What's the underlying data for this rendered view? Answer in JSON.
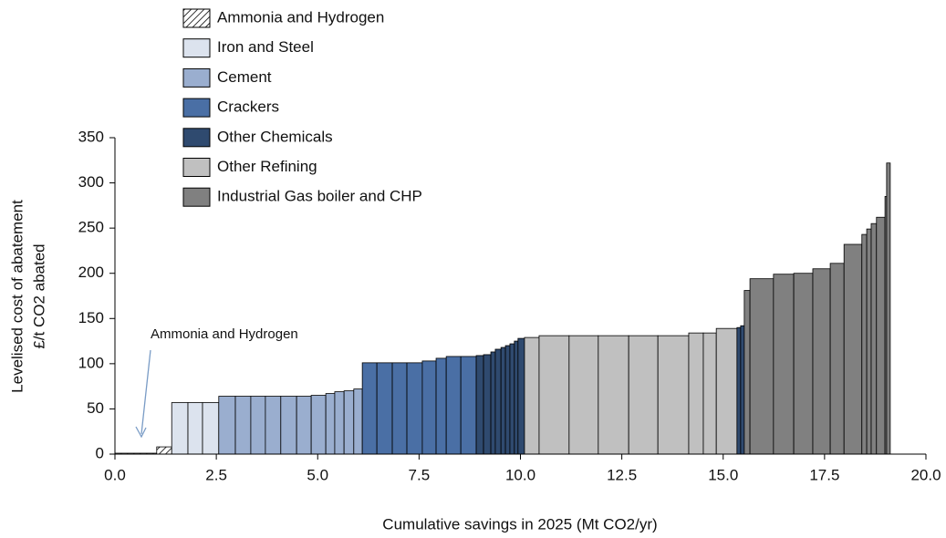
{
  "chart_data": {
    "type": "macc",
    "y_label": [
      "Levelised cost of abatement",
      "£/t CO2 abated"
    ],
    "x_label": "Cumulative savings in 2025 (Mt CO2/yr)",
    "annotation": "Ammonia and Hydrogen",
    "xlim": [
      0,
      20
    ],
    "xticks": [
      {
        "value": 0,
        "label": "0.0"
      },
      2.5,
      {
        "value": 5,
        "label": "5.0"
      },
      7.5,
      {
        "value": 10,
        "label": "10.0"
      },
      12.5,
      {
        "value": 15,
        "label": "15.0"
      },
      17.5,
      {
        "value": 20,
        "label": "20.0"
      }
    ],
    "ylim": [
      0,
      350
    ],
    "yticks": [
      0,
      50,
      100,
      150,
      200,
      250,
      300,
      350
    ],
    "series": [
      {
        "name": "Ammonia and Hydrogen",
        "color": "hatch"
      },
      {
        "name": "Iron and Steel",
        "color": "#dce3ee"
      },
      {
        "name": "Cement",
        "color": "#9aaecf"
      },
      {
        "name": "Crackers",
        "color": "#4a6fa5"
      },
      {
        "name": "Other Chemicals",
        "color": "#2f4a6f"
      },
      {
        "name": "Other Refining",
        "color": "#c0c0c0"
      },
      {
        "name": "Industrial Gas boiler and CHP",
        "color": "#808080"
      }
    ],
    "bars": [
      {
        "sector": 0,
        "width": 1.03,
        "value": 1
      },
      {
        "sector": 0,
        "width": 0.37,
        "value": 8
      },
      {
        "sector": 1,
        "width": 0.4,
        "value": 57
      },
      {
        "sector": 1,
        "width": 0.36,
        "value": 57
      },
      {
        "sector": 1,
        "width": 0.4,
        "value": 57
      },
      {
        "sector": 2,
        "width": 0.41,
        "value": 64
      },
      {
        "sector": 2,
        "width": 0.38,
        "value": 64
      },
      {
        "sector": 2,
        "width": 0.36,
        "value": 64
      },
      {
        "sector": 2,
        "width": 0.38,
        "value": 64
      },
      {
        "sector": 2,
        "width": 0.39,
        "value": 64
      },
      {
        "sector": 2,
        "width": 0.36,
        "value": 64
      },
      {
        "sector": 2,
        "width": 0.36,
        "value": 65
      },
      {
        "sector": 2,
        "width": 0.22,
        "value": 67
      },
      {
        "sector": 2,
        "width": 0.23,
        "value": 69
      },
      {
        "sector": 2,
        "width": 0.24,
        "value": 70
      },
      {
        "sector": 2,
        "width": 0.21,
        "value": 72
      },
      {
        "sector": 3,
        "width": 0.36,
        "value": 101
      },
      {
        "sector": 3,
        "width": 0.38,
        "value": 101
      },
      {
        "sector": 3,
        "width": 0.36,
        "value": 101
      },
      {
        "sector": 3,
        "width": 0.38,
        "value": 101
      },
      {
        "sector": 3,
        "width": 0.34,
        "value": 103
      },
      {
        "sector": 3,
        "width": 0.25,
        "value": 106
      },
      {
        "sector": 3,
        "width": 0.36,
        "value": 108
      },
      {
        "sector": 3,
        "width": 0.38,
        "value": 108
      },
      {
        "sector": 4,
        "width": 0.18,
        "value": 109
      },
      {
        "sector": 4,
        "width": 0.18,
        "value": 110
      },
      {
        "sector": 4,
        "width": 0.11,
        "value": 113
      },
      {
        "sector": 4,
        "width": 0.14,
        "value": 116
      },
      {
        "sector": 4,
        "width": 0.11,
        "value": 118
      },
      {
        "sector": 4,
        "width": 0.11,
        "value": 120
      },
      {
        "sector": 4,
        "width": 0.11,
        "value": 122
      },
      {
        "sector": 4,
        "width": 0.09,
        "value": 125
      },
      {
        "sector": 4,
        "width": 0.16,
        "value": 128
      },
      {
        "sector": 5,
        "width": 0.36,
        "value": 129
      },
      {
        "sector": 5,
        "width": 0.74,
        "value": 131
      },
      {
        "sector": 5,
        "width": 0.72,
        "value": 131
      },
      {
        "sector": 5,
        "width": 0.75,
        "value": 131
      },
      {
        "sector": 5,
        "width": 0.72,
        "value": 131
      },
      {
        "sector": 5,
        "width": 0.76,
        "value": 131
      },
      {
        "sector": 5,
        "width": 0.36,
        "value": 134
      },
      {
        "sector": 5,
        "width": 0.32,
        "value": 134
      },
      {
        "sector": 5,
        "width": 0.51,
        "value": 139
      },
      {
        "sector": 4,
        "width": 0.09,
        "value": 140
      },
      {
        "sector": 4,
        "width": 0.09,
        "value": 142
      },
      {
        "sector": 6,
        "width": 0.14,
        "value": 181
      },
      {
        "sector": 6,
        "width": 0.58,
        "value": 194
      },
      {
        "sector": 6,
        "width": 0.5,
        "value": 199
      },
      {
        "sector": 6,
        "width": 0.47,
        "value": 200
      },
      {
        "sector": 6,
        "width": 0.43,
        "value": 205
      },
      {
        "sector": 6,
        "width": 0.34,
        "value": 211
      },
      {
        "sector": 6,
        "width": 0.44,
        "value": 232
      },
      {
        "sector": 6,
        "width": 0.12,
        "value": 243
      },
      {
        "sector": 6,
        "width": 0.11,
        "value": 249
      },
      {
        "sector": 6,
        "width": 0.13,
        "value": 255
      },
      {
        "sector": 6,
        "width": 0.21,
        "value": 262
      },
      {
        "sector": 6,
        "width": 0.04,
        "value": 285
      },
      {
        "sector": 6,
        "width": 0.09,
        "value": 322
      }
    ]
  }
}
